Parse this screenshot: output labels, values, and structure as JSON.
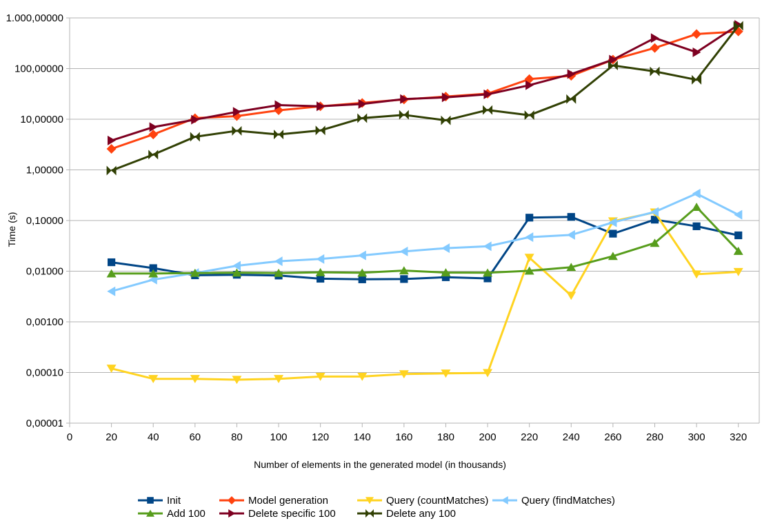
{
  "chart_data": {
    "type": "line",
    "title": "",
    "xlabel": "Number of elements in the generated model (in thousands)",
    "ylabel": "Time (s)",
    "xlim": [
      0,
      330
    ],
    "ylim": [
      1e-05,
      1000
    ],
    "y_scale": "log",
    "grid": "horizontal",
    "legend_position": "bottom",
    "x_ticks": [
      "0",
      "20",
      "40",
      "60",
      "80",
      "100",
      "120",
      "140",
      "160",
      "180",
      "200",
      "220",
      "240",
      "260",
      "280",
      "300",
      "320"
    ],
    "x_tick_values": [
      0,
      20,
      40,
      60,
      80,
      100,
      120,
      140,
      160,
      180,
      200,
      220,
      240,
      260,
      280,
      300,
      320
    ],
    "y_ticks": [
      "0,00001",
      "0,00010",
      "0,00100",
      "0,01000",
      "0,10000",
      "1,00000",
      "10,00000",
      "100,00000",
      "1.000,00000"
    ],
    "y_tick_values": [
      1e-05,
      0.0001,
      0.001,
      0.01,
      0.1,
      1,
      10,
      100,
      1000
    ],
    "x": [
      20,
      40,
      60,
      80,
      100,
      120,
      140,
      160,
      180,
      200,
      220,
      240,
      260,
      280,
      300,
      320
    ],
    "series": [
      {
        "name": "Init",
        "color": "#004586",
        "marker": "square",
        "values": [
          0.015,
          0.0115,
          0.0083,
          0.0085,
          0.0082,
          0.0071,
          0.0069,
          0.007,
          0.0076,
          0.0072,
          0.114,
          0.118,
          0.055,
          0.104,
          0.077,
          0.051
        ]
      },
      {
        "name": "Model generation",
        "color": "#ff420e",
        "marker": "diamond",
        "values": [
          2.6,
          5.0,
          10.5,
          11.5,
          15.0,
          18.0,
          21.0,
          24.5,
          28.0,
          32.0,
          62.0,
          72.0,
          150.0,
          255.0,
          480.0,
          540.0
        ]
      },
      {
        "name": "Query (countMatches)",
        "color": "#ffd320",
        "marker": "triangle-down",
        "values": [
          0.00012,
          7.5e-05,
          7.5e-05,
          7.2e-05,
          7.5e-05,
          8.3e-05,
          8.3e-05,
          9.3e-05,
          9.6e-05,
          9.8e-05,
          0.0185,
          0.0033,
          0.097,
          0.145,
          0.0087,
          0.0097
        ]
      },
      {
        "name": "Query (findMatches)",
        "color": "#83caff",
        "marker": "triangle-left",
        "values": [
          0.004,
          0.0068,
          0.0092,
          0.0128,
          0.0157,
          0.0174,
          0.0205,
          0.0245,
          0.0285,
          0.031,
          0.047,
          0.052,
          0.092,
          0.148,
          0.34,
          0.13
        ]
      },
      {
        "name": "Add 100",
        "color": "#579d1c",
        "marker": "triangle-up",
        "values": [
          0.009,
          0.009,
          0.0092,
          0.0093,
          0.0092,
          0.0095,
          0.0093,
          0.0103,
          0.0094,
          0.0093,
          0.0102,
          0.012,
          0.0198,
          0.036,
          0.185,
          0.025
        ]
      },
      {
        "name": "Delete specific 100",
        "color": "#7e0021",
        "marker": "triangle-right",
        "values": [
          3.8,
          7.0,
          9.8,
          14.0,
          19.0,
          18.0,
          20.0,
          25.0,
          27.0,
          31.0,
          47.0,
          78.0,
          150.0,
          400.0,
          210.0,
          730.0
        ]
      },
      {
        "name": "Delete any 100",
        "color": "#314004",
        "marker": "bowtie",
        "values": [
          0.97,
          2.0,
          4.5,
          5.9,
          5.0,
          6.0,
          10.5,
          12.2,
          9.5,
          15.2,
          12.0,
          25.0,
          115.0,
          88.0,
          60.0,
          700.0
        ]
      }
    ]
  }
}
